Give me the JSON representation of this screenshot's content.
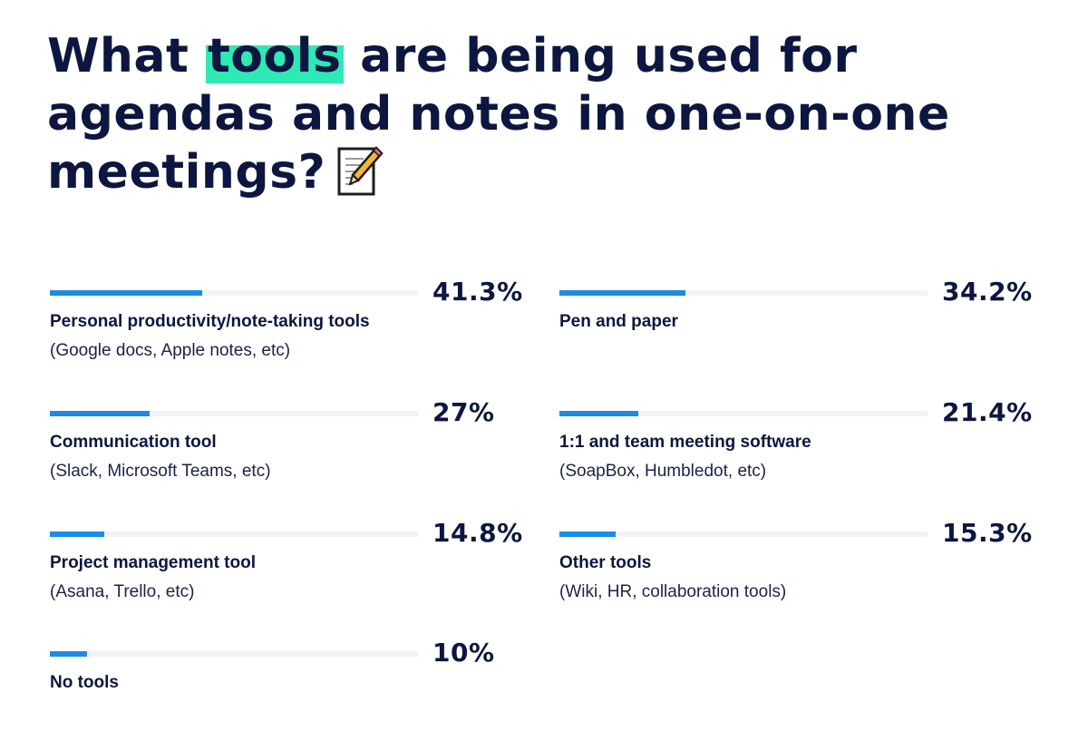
{
  "title": {
    "before": "What ",
    "highlight": "tools",
    "after": " are being used for agendas and notes in one-on-one meetings?",
    "icon": "memo-icon",
    "highlight_color": "#2ee8b6"
  },
  "colors": {
    "bar": "#1c8be6",
    "track": "#f1f2f5",
    "text": "#0c1640"
  },
  "chart_data": {
    "type": "bar",
    "orientation": "horizontal",
    "title": "What tools are being used for agendas and notes in one-on-one meetings?",
    "xlim": [
      0,
      100
    ],
    "unit": "%",
    "categories": [
      "Personal productivity/note-taking tools",
      "Pen and paper",
      "Communication tool",
      "1:1 and team meeting software",
      "Project management tool",
      "Other tools",
      "No tools"
    ],
    "sublabels": [
      "(Google docs, Apple notes, etc)",
      "",
      "(Slack, Microsoft Teams, etc)",
      "(SoapBox, Humbledot, etc)",
      "(Asana, Trello, etc)",
      "(Wiki, HR, collaboration tools)",
      ""
    ],
    "values": [
      41.3,
      34.2,
      27,
      21.4,
      14.8,
      15.3,
      10
    ],
    "value_labels": [
      "41.3%",
      "34.2%",
      "27%",
      "21.4%",
      "14.8%",
      "15.3%",
      "10%"
    ],
    "grid": false,
    "legend": "none"
  }
}
